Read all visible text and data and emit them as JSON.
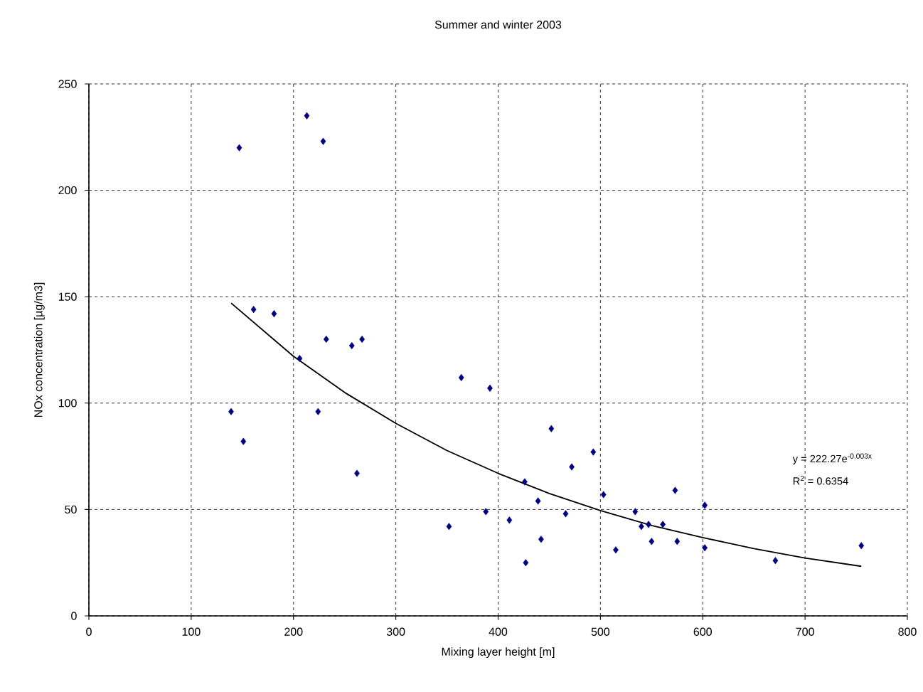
{
  "chart_data": {
    "type": "scatter",
    "title": "Summer and winter 2003",
    "xlabel": "Mixing layer height [m]",
    "ylabel": "NOx concentration [µg/m3]",
    "xlim": [
      0,
      800
    ],
    "ylim": [
      0,
      250
    ],
    "xticks": [
      0,
      100,
      200,
      300,
      400,
      500,
      600,
      700,
      800
    ],
    "yticks": [
      0,
      50,
      100,
      150,
      200,
      250
    ],
    "grid": true,
    "marker": "diamond",
    "series": [
      {
        "color": "#000080",
        "x": [
          147,
          213,
          229,
          139,
          151,
          161,
          181,
          206,
          224,
          232,
          257,
          267,
          262,
          352,
          364,
          388,
          392,
          411,
          426,
          427,
          439,
          442,
          452,
          466,
          472,
          493,
          503,
          515,
          534,
          540,
          547,
          550,
          561,
          573,
          575,
          602,
          602,
          671,
          755
        ],
        "values": [
          220,
          235,
          223,
          96,
          82,
          144,
          142,
          121,
          96,
          130,
          127,
          130,
          67,
          42,
          112,
          49,
          107,
          45,
          63,
          25,
          54,
          36,
          88,
          48,
          70,
          77,
          57,
          31,
          49,
          42,
          43,
          35,
          43,
          59,
          35,
          52,
          32,
          26,
          33
        ]
      },
      {
        "type": "line",
        "color": "#000000",
        "marker": "none",
        "x": [
          139,
          200,
          250,
          300,
          350,
          400,
          450,
          500,
          550,
          600,
          650,
          700,
          755
        ],
        "values": [
          147,
          122,
          105,
          90.5,
          77.7,
          67,
          57.5,
          49.5,
          42.5,
          36.8,
          31.6,
          27.2,
          23.3
        ]
      }
    ],
    "annotations": [
      "y = 222.27e$^{-0.003x}$",
      "R$^{2}$ = 0.6354"
    ]
  }
}
